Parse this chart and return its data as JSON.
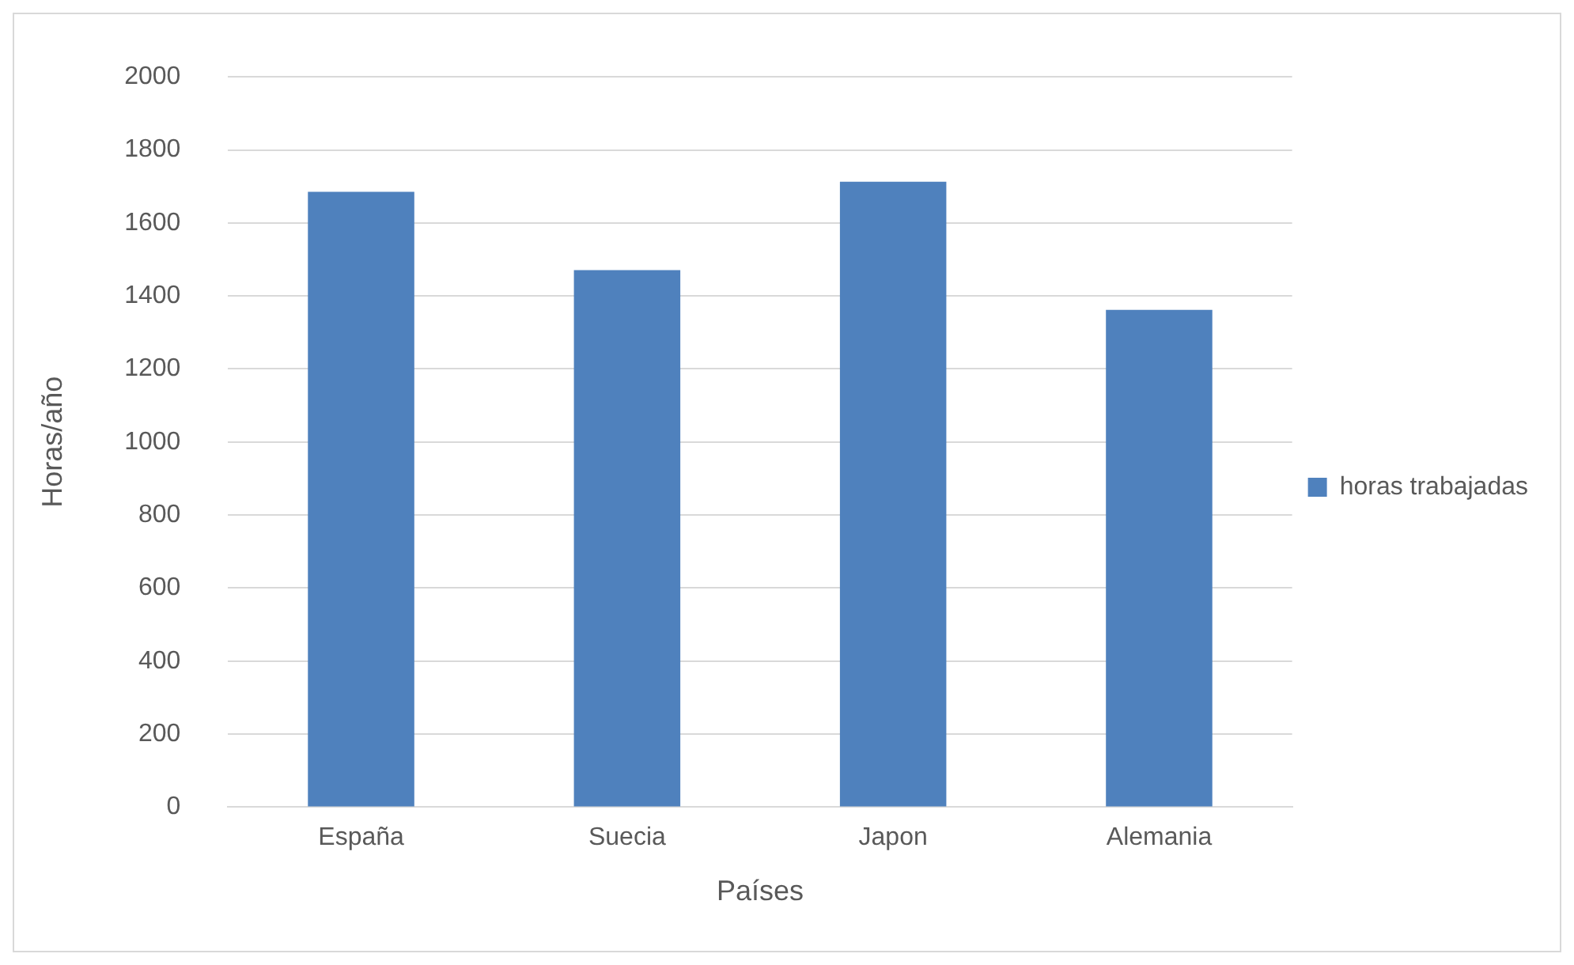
{
  "chart_data": {
    "type": "bar",
    "xlabel": "Países",
    "ylabel": "Horas/año",
    "categories": [
      "España",
      "Suecia",
      "Japon",
      "Alemania"
    ],
    "series": [
      {
        "name": "horas trabajadas",
        "color": "#4f81bd",
        "values": [
          1685,
          1471,
          1713,
          1362
        ]
      }
    ],
    "ylim": [
      0,
      2000
    ],
    "yticks": [
      0,
      200,
      400,
      600,
      800,
      1000,
      1200,
      1400,
      1600,
      1800,
      2000
    ],
    "grid": "y",
    "legend": "right"
  }
}
